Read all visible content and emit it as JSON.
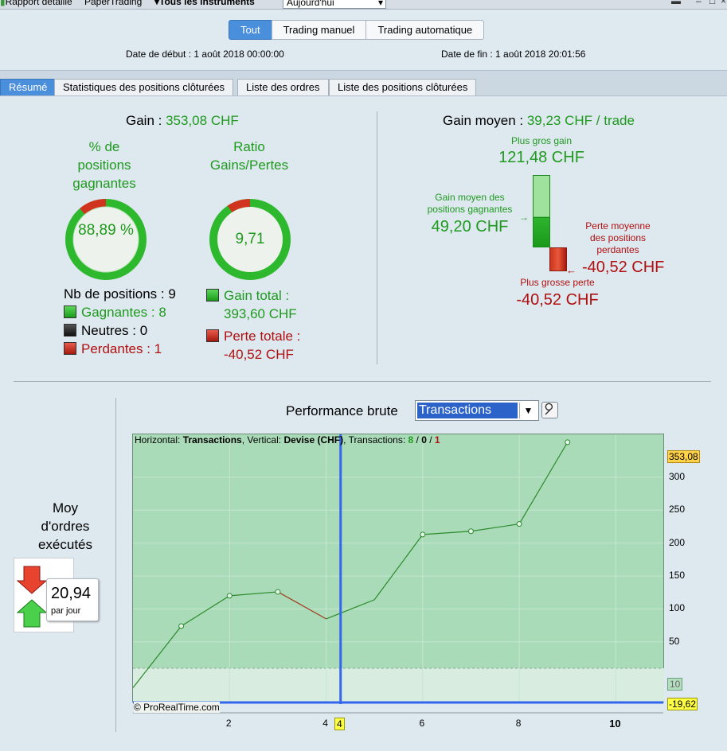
{
  "topbar": {
    "report": "Rapport détaillé",
    "account": "PaperTrading",
    "instruments": "Tous les instruments",
    "period": "Aujourd'hui"
  },
  "mode_tabs": [
    "Tout",
    "Trading manuel",
    "Trading automatique"
  ],
  "dates": {
    "start": "Date de début : 1 août 2018 00:00:00",
    "end": "Date de fin : 1 août 2018 20:01:56"
  },
  "tabs": [
    "Résumé",
    "Statistiques des positions clôturées",
    "Liste des ordres",
    "Liste des positions clôturées"
  ],
  "summary": {
    "gain_label": "Gain :",
    "gain_value": "353,08 CHF",
    "pct_title": "% de positions gagnantes",
    "pct_value": "88,89 %",
    "pct_fraction": 0.8889,
    "ratio_title": "Ratio Gains/Pertes",
    "ratio_value": "9,71",
    "ratio_fraction": 0.9067,
    "nb_positions": "Nb de positions : 9",
    "winners": "Gagnantes : 8",
    "neutral": "Neutres : 0",
    "losers": "Perdantes : 1",
    "total_gain_label": "Gain total :",
    "total_gain_value": "393,60 CHF",
    "total_loss_label": "Perte totale :",
    "total_loss_value": "-40,52 CHF"
  },
  "avg": {
    "label": "Gain moyen :",
    "value": "39,23 CHF / trade",
    "biggest_gain_label": "Plus gros gain",
    "biggest_gain_value": "121,48 CHF",
    "avg_win_label": "Gain moyen des positions gagnantes",
    "avg_win_value": "49,20 CHF",
    "avg_loss_label": "Perte moyenne des positions perdantes",
    "avg_loss_value": "-40,52 CHF",
    "biggest_loss_label": "Plus grosse perte",
    "biggest_loss_value": "-40,52 CHF"
  },
  "orders": {
    "label": "Moy d'ordres exécutés :",
    "value": "20,94",
    "unit": "par jour"
  },
  "perf": {
    "title": "Performance brute",
    "selector": "Transactions",
    "info_h_label": "Horizontal:",
    "info_h_value": "Transactions",
    "info_v_label": "Vertical:",
    "info_v_value": "Devise (CHF)",
    "info_t_label": "Transactions:",
    "info_wins": "8",
    "info_neutral": "0",
    "info_losses": "1",
    "copyright": "© ProRealTime.com",
    "cursor_label": "4",
    "last_label": "353,08",
    "min_label": "-19,62",
    "zero_label": "10"
  },
  "colors": {
    "accent": "#4a8fdc",
    "green": "#1f9a1f",
    "red": "#b01010",
    "chart_bg": "#a9dbb8"
  },
  "chart_data": {
    "type": "line",
    "x": [
      0,
      1,
      2,
      3,
      4,
      5,
      6,
      7,
      8,
      9
    ],
    "values": [
      -19.62,
      74,
      120,
      126,
      85,
      114,
      213,
      218,
      229,
      353.08
    ],
    "xlim": [
      0,
      11
    ],
    "ylim": [
      -25,
      365
    ],
    "x_ticks": [
      "2",
      "4",
      "6",
      "8",
      "10"
    ],
    "y_ticks": [
      "50",
      "100",
      "150",
      "200",
      "250",
      "300"
    ],
    "grid": true
  }
}
